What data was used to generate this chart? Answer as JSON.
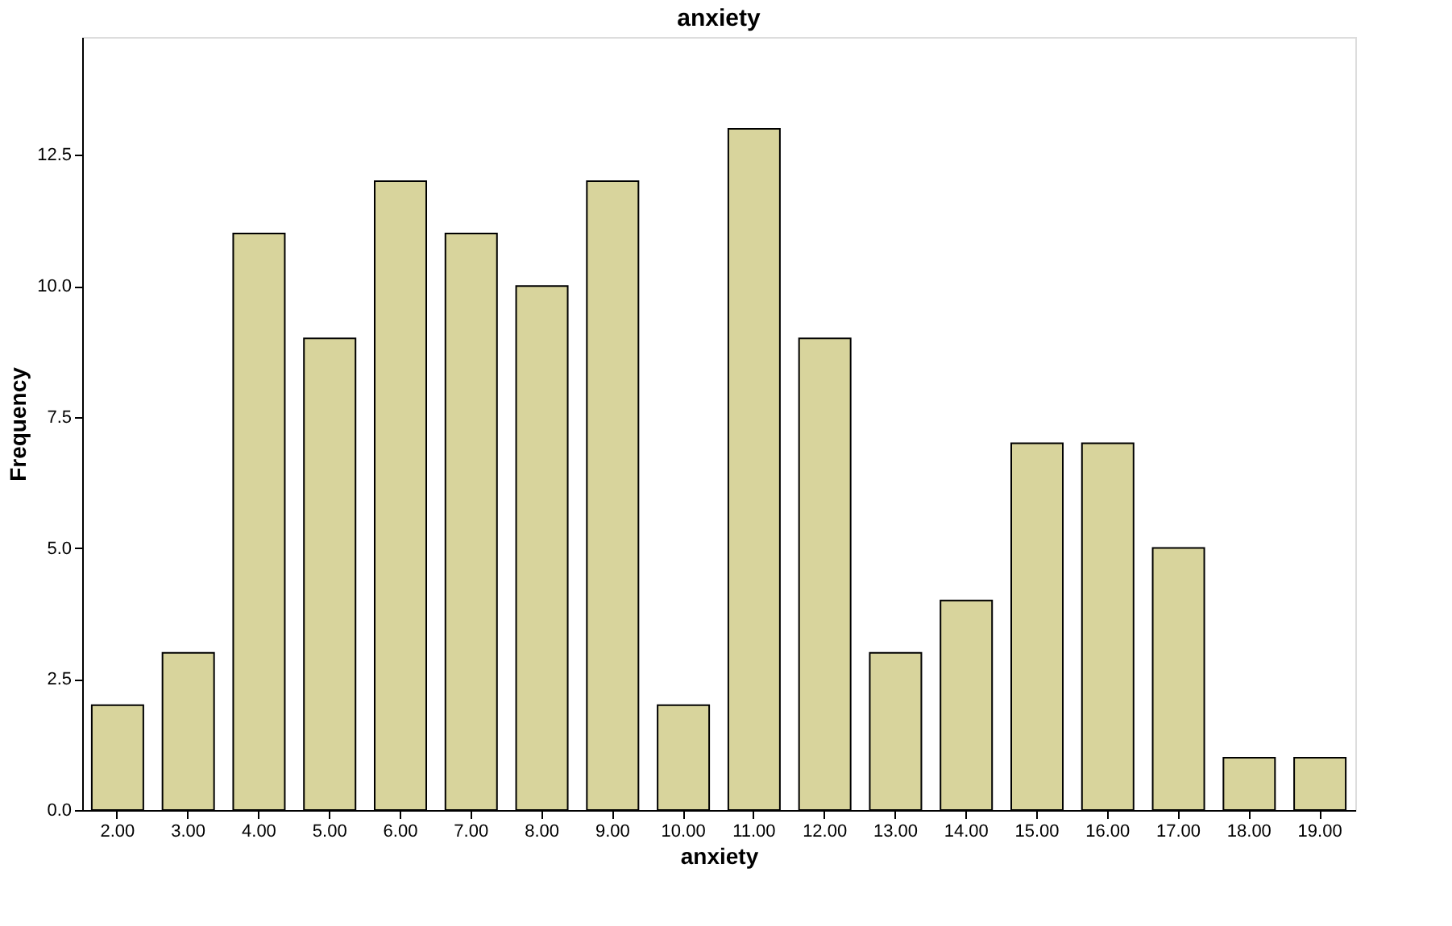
{
  "chart_data": {
    "type": "bar",
    "title": "anxiety",
    "xlabel": "anxiety",
    "ylabel": "Frequency",
    "categories": [
      "2.00",
      "3.00",
      "4.00",
      "5.00",
      "6.00",
      "7.00",
      "8.00",
      "9.00",
      "10.00",
      "11.00",
      "12.00",
      "13.00",
      "14.00",
      "15.00",
      "16.00",
      "17.00",
      "18.00",
      "19.00"
    ],
    "values": [
      2,
      3,
      11,
      9,
      12,
      11,
      10,
      12,
      2,
      13,
      9,
      3,
      4,
      7,
      7,
      5,
      1,
      1
    ],
    "color": "#d8d49c",
    "ylim": [
      0,
      14.75
    ],
    "yticks": [
      {
        "value": 0,
        "label": "0.0"
      },
      {
        "value": 2.5,
        "label": "2.5"
      },
      {
        "value": 5,
        "label": "5.0"
      },
      {
        "value": 7.5,
        "label": "7.5"
      },
      {
        "value": 10,
        "label": "10.0"
      },
      {
        "value": 12.5,
        "label": "12.5"
      }
    ],
    "grid": false
  }
}
